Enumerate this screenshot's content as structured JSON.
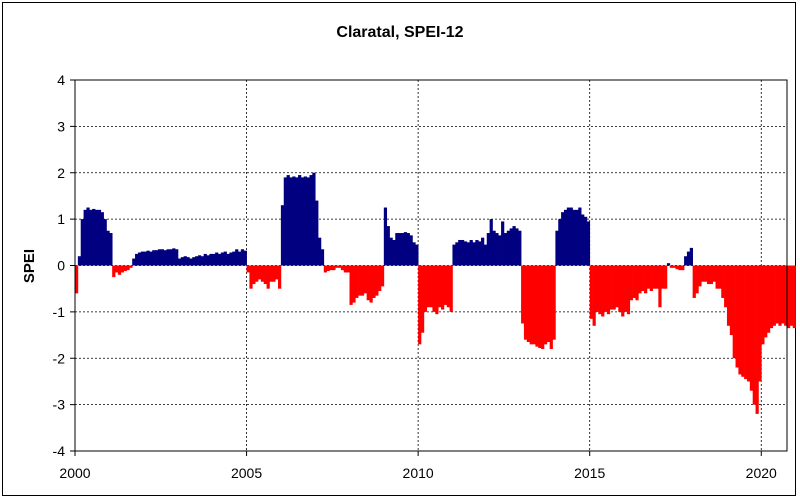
{
  "chart_data": {
    "type": "bar",
    "title": "Claratal, SPEI-12",
    "xlabel": "",
    "ylabel": "SPEI",
    "xlim": [
      2000,
      2020.75
    ],
    "ylim": [
      -4,
      4
    ],
    "x_ticks": [
      "2000",
      "2005",
      "2010",
      "2015",
      "2020"
    ],
    "y_ticks": [
      "4",
      "3",
      "2",
      "1",
      "0",
      "-1",
      "-2",
      "-3",
      "-4"
    ],
    "grid": true,
    "positive_color": "#000080",
    "negative_color": "#ff0000",
    "x_start": "2000-01",
    "interval": "monthly",
    "values": [
      -0.6,
      0.2,
      1.0,
      1.2,
      1.25,
      1.2,
      1.22,
      1.2,
      1.2,
      1.15,
      1.0,
      0.75,
      0.7,
      -0.25,
      -0.15,
      -0.2,
      -0.15,
      -0.12,
      -0.1,
      -0.05,
      0.15,
      0.25,
      0.28,
      0.3,
      0.3,
      0.32,
      0.3,
      0.33,
      0.33,
      0.35,
      0.35,
      0.33,
      0.35,
      0.35,
      0.37,
      0.35,
      0.15,
      0.18,
      0.2,
      0.18,
      0.15,
      0.18,
      0.2,
      0.22,
      0.2,
      0.25,
      0.22,
      0.25,
      0.25,
      0.28,
      0.25,
      0.28,
      0.3,
      0.25,
      0.28,
      0.3,
      0.35,
      0.3,
      0.35,
      0.32,
      -0.15,
      -0.5,
      -0.4,
      -0.35,
      -0.3,
      -0.35,
      -0.4,
      -0.5,
      -0.35,
      -0.35,
      -0.3,
      -0.5,
      1.3,
      1.9,
      1.95,
      1.9,
      1.92,
      1.9,
      1.95,
      1.9,
      1.92,
      1.9,
      1.95,
      2.0,
      1.4,
      0.6,
      0.35,
      -0.15,
      -0.12,
      -0.1,
      -0.1,
      -0.05,
      -0.05,
      -0.1,
      -0.15,
      -0.15,
      -0.85,
      -0.8,
      -0.7,
      -0.65,
      -0.65,
      -0.6,
      -0.75,
      -0.8,
      -0.7,
      -0.65,
      -0.55,
      -0.45,
      1.25,
      0.85,
      0.6,
      0.55,
      0.7,
      0.7,
      0.7,
      0.72,
      0.7,
      0.65,
      0.5,
      0.45,
      -1.7,
      -1.45,
      -1.0,
      -0.9,
      -0.9,
      -1.0,
      -1.05,
      -0.9,
      -0.95,
      -0.85,
      -0.9,
      -1.0,
      0.45,
      0.5,
      0.55,
      0.55,
      0.52,
      0.5,
      0.55,
      0.5,
      0.55,
      0.52,
      0.6,
      0.45,
      0.7,
      1.0,
      0.75,
      0.7,
      0.65,
      0.95,
      0.7,
      0.75,
      0.8,
      0.85,
      0.8,
      0.75,
      -1.25,
      -1.6,
      -1.65,
      -1.7,
      -1.7,
      -1.75,
      -1.78,
      -1.8,
      -1.7,
      -1.65,
      -1.8,
      -1.6,
      0.75,
      1.0,
      1.15,
      1.2,
      1.25,
      1.25,
      1.2,
      1.2,
      1.25,
      1.1,
      1.05,
      0.95,
      -1.15,
      -1.3,
      -1.0,
      -1.05,
      -1.1,
      -1.0,
      -1.05,
      -0.95,
      -0.95,
      -0.9,
      -1.0,
      -1.1,
      -1.0,
      -1.05,
      -0.75,
      -0.7,
      -0.75,
      -0.6,
      -0.55,
      -0.6,
      -0.5,
      -0.55,
      -0.5,
      -0.5,
      -0.9,
      -0.5,
      -0.5,
      0.05,
      -0.05,
      -0.05,
      -0.08,
      -0.1,
      -0.1,
      0.2,
      0.3,
      0.38,
      -0.7,
      -0.6,
      -0.45,
      -0.35,
      -0.35,
      -0.4,
      -0.4,
      -0.35,
      -0.5,
      -0.5,
      -0.7,
      -0.9,
      -1.3,
      -1.5,
      -2.0,
      -2.2,
      -2.35,
      -2.4,
      -2.45,
      -2.5,
      -2.7,
      -3.0,
      -3.2,
      -2.5,
      -1.7,
      -1.55,
      -1.45,
      -1.35,
      -1.3,
      -1.25,
      -1.3,
      -1.25,
      -1.3,
      -1.35,
      -1.3,
      -1.35
    ]
  }
}
